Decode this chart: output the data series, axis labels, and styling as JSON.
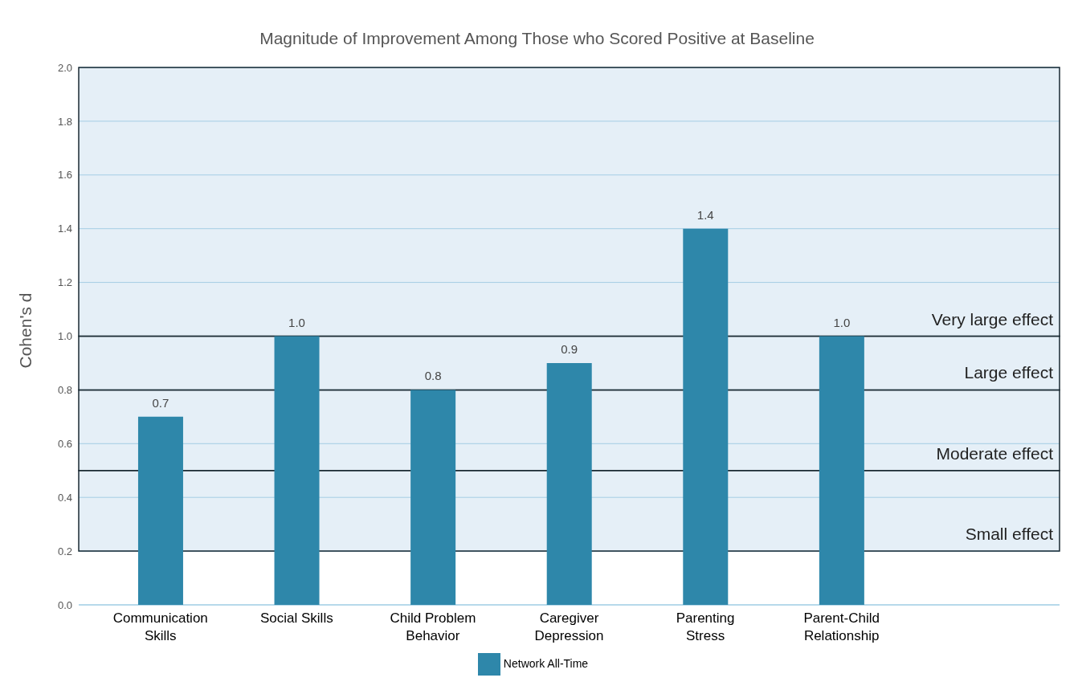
{
  "chart_data": {
    "type": "bar",
    "title": "Magnitude of Improvement Among Those who Scored Positive at Baseline",
    "ylabel": "Cohen's d",
    "categories": [
      "Communication Skills",
      "Social Skills",
      "Child Problem Behavior",
      "Caregiver Depression",
      "Parenting Stress",
      "Parent-Child Relationship"
    ],
    "series": [
      {
        "name": "Network All-Time",
        "color": "#2e87aa",
        "values": [
          0.7,
          1.0,
          0.8,
          0.9,
          1.4,
          1.0
        ],
        "value_labels": [
          "0.7",
          "1.0",
          "0.8",
          "0.9",
          "1.4",
          "1.0"
        ]
      }
    ],
    "ylim": [
      0,
      2
    ],
    "yticks": [
      {
        "value": 0,
        "label": "0.0"
      },
      {
        "value": 0.2,
        "label": "0.2"
      },
      {
        "value": 0.4,
        "label": "0.4"
      },
      {
        "value": 0.6,
        "label": "0.6"
      },
      {
        "value": 0.8,
        "label": "0.8"
      },
      {
        "value": 1,
        "label": "1.0"
      },
      {
        "value": 1.2,
        "label": "1.2"
      },
      {
        "value": 1.4,
        "label": "1.4"
      },
      {
        "value": 1.6,
        "label": "1.6"
      },
      {
        "value": 1.8,
        "label": "1.8"
      },
      {
        "value": 2,
        "label": "2.0"
      }
    ],
    "grid": "y",
    "legend": "bottom",
    "bands": [
      {
        "axis": "y",
        "from": 0.2,
        "to": 0.5,
        "label": "Small effect",
        "color": "#cfe2f0"
      },
      {
        "axis": "y",
        "from": 0.5,
        "to": 0.8,
        "label": "Moderate effect",
        "color": "#cfe2f0"
      },
      {
        "axis": "y",
        "from": 0.8,
        "to": 1.0,
        "label": "Large effect",
        "color": "#cfe2f0"
      },
      {
        "axis": "y",
        "from": 1.0,
        "to": 2.0,
        "label": "Very large effect",
        "color": "#cfe2f0"
      }
    ]
  }
}
